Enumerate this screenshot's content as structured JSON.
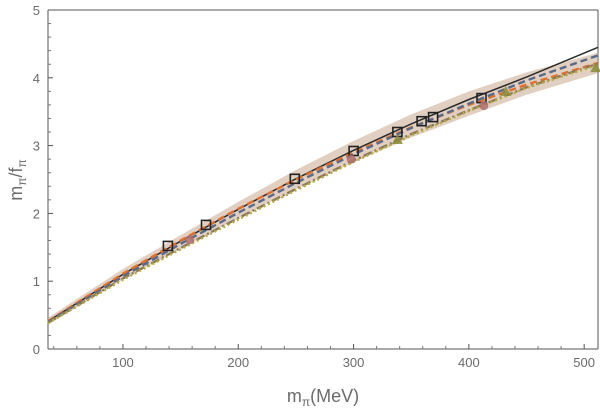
{
  "chart_data": {
    "type": "line",
    "xlabel_main": "m",
    "xlabel_sub": "π",
    "xlabel_rest": "(MeV)",
    "ylabel_main": "m",
    "ylabel_sub1": "π",
    "ylabel_slash": "/f",
    "ylabel_sub2": "π",
    "xlim": [
      35,
      512
    ],
    "ylim": [
      0,
      5
    ],
    "xticks": [
      100,
      200,
      300,
      400,
      500
    ],
    "yticks": [
      0,
      1,
      2,
      3,
      4,
      5
    ],
    "band": {
      "color": "#c8a890",
      "x": [
        35,
        100,
        150,
        200,
        250,
        300,
        350,
        400,
        450,
        512
      ],
      "lower": [
        0.36,
        1.02,
        1.48,
        1.93,
        2.36,
        2.75,
        3.12,
        3.44,
        3.75,
        4.07
      ],
      "upper": [
        0.46,
        1.18,
        1.68,
        2.17,
        2.64,
        3.07,
        3.46,
        3.8,
        4.08,
        4.37
      ]
    },
    "series": [
      {
        "style": "solid",
        "color": "#2b2b2b",
        "x": [
          35,
          100,
          150,
          200,
          250,
          300,
          350,
          400,
          450,
          512
        ],
        "y": [
          0.41,
          1.1,
          1.59,
          2.06,
          2.51,
          2.93,
          3.32,
          3.68,
          4.01,
          4.45
        ]
      },
      {
        "style": "dashed",
        "color": "#e07030",
        "x": [
          35,
          100,
          150,
          200,
          250,
          300,
          350,
          400,
          450,
          512
        ],
        "y": [
          0.41,
          1.11,
          1.6,
          2.07,
          2.5,
          2.9,
          3.27,
          3.6,
          3.9,
          4.22
        ]
      },
      {
        "style": "dashed",
        "color": "#5a6a88",
        "x": [
          35,
          100,
          150,
          200,
          250,
          300,
          350,
          400,
          450,
          512
        ],
        "y": [
          0.4,
          1.07,
          1.55,
          2.01,
          2.45,
          2.87,
          3.26,
          3.62,
          3.96,
          4.33
        ]
      },
      {
        "style": "dashdot",
        "color": "#8a7a5a",
        "x": [
          35,
          100,
          150,
          200,
          250,
          300,
          350,
          400,
          450,
          512
        ],
        "y": [
          0.39,
          1.04,
          1.49,
          1.93,
          2.36,
          2.78,
          3.17,
          3.52,
          3.86,
          4.21
        ]
      },
      {
        "style": "dotted",
        "color": "#b8aa40",
        "x": [
          35,
          100,
          150,
          200,
          250,
          300,
          350,
          400,
          450,
          512
        ],
        "y": [
          0.38,
          1.02,
          1.47,
          1.91,
          2.34,
          2.76,
          3.15,
          3.51,
          3.85,
          4.19
        ]
      }
    ],
    "points": [
      {
        "marker": "square",
        "color": "#222222",
        "x": [
          139,
          172,
          249,
          300,
          338,
          359,
          369,
          411
        ],
        "y": [
          1.52,
          1.83,
          2.51,
          2.92,
          3.2,
          3.36,
          3.42,
          3.7
        ]
      },
      {
        "marker": "circle",
        "color": "#b07070",
        "x": [
          158,
          298,
          413
        ],
        "y": [
          1.61,
          2.8,
          3.59
        ]
      },
      {
        "marker": "triangle",
        "color": "#8a8a3a",
        "x": [
          338,
          432,
          510
        ],
        "y": [
          3.09,
          3.8,
          4.15
        ]
      }
    ]
  }
}
